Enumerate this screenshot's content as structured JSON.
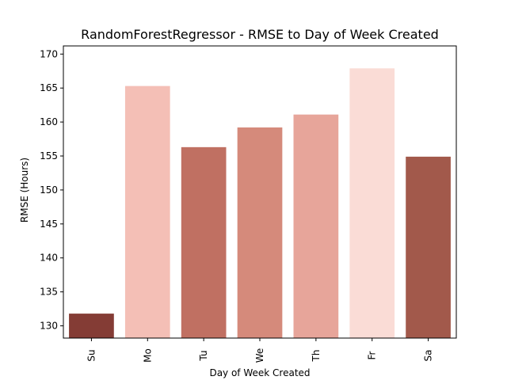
{
  "chart_data": {
    "type": "bar",
    "title": "RandomForestRegressor - RMSE to Day of Week Created",
    "xlabel": "Day of Week Created",
    "ylabel": "RMSE (Hours)",
    "categories": [
      "Su",
      "Mo",
      "Tu",
      "We",
      "Th",
      "Fr",
      "Sa"
    ],
    "values": [
      131.8,
      165.3,
      156.3,
      159.2,
      161.1,
      167.9,
      154.9
    ],
    "colors": [
      "#843c35",
      "#f4bfb6",
      "#c07062",
      "#d58a7b",
      "#e7a59a",
      "#fadcd6",
      "#a2594b"
    ],
    "ylim": [
      128.2,
      171.2
    ],
    "yticks": [
      130,
      135,
      140,
      145,
      150,
      155,
      160,
      165,
      170
    ],
    "grid": false,
    "legend": "none"
  }
}
